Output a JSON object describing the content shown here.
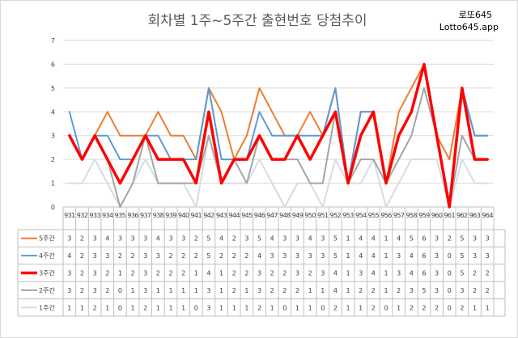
{
  "chart_data": {
    "type": "line",
    "title": "회차별 1주~5주간 출현번호 당첨추이",
    "brand": [
      "로또645",
      "Lotto645.app"
    ],
    "ylim": [
      0,
      7
    ],
    "yticks": [
      0,
      1,
      2,
      3,
      4,
      5,
      6,
      7
    ],
    "grid": true,
    "legend": "table-left",
    "categories": [
      "931",
      "932",
      "933",
      "934",
      "935",
      "936",
      "937",
      "938",
      "939",
      "940",
      "941",
      "942",
      "943",
      "944",
      "945",
      "946",
      "947",
      "948",
      "949",
      "950",
      "951",
      "952",
      "953",
      "954",
      "955",
      "956",
      "957",
      "958",
      "959",
      "960",
      "961",
      "962",
      "963",
      "964"
    ],
    "series": [
      {
        "name": "5주간",
        "color": "#ED7D31",
        "width": 2,
        "values": [
          3,
          2,
          3,
          4,
          3,
          3,
          3,
          4,
          3,
          3,
          2,
          5,
          4,
          2,
          3,
          5,
          4,
          3,
          3,
          4,
          3,
          5,
          1,
          4,
          4,
          1,
          4,
          5,
          6,
          3,
          2,
          5,
          3,
          3
        ]
      },
      {
        "name": "4주간",
        "color": "#5B9BD5",
        "width": 2,
        "values": [
          4,
          2,
          3,
          3,
          2,
          2,
          3,
          3,
          2,
          2,
          2,
          5,
          2,
          2,
          2,
          4,
          3,
          3,
          3,
          3,
          3,
          5,
          1,
          4,
          4,
          1,
          3,
          4,
          6,
          3,
          0,
          5,
          3,
          3
        ]
      },
      {
        "name": "3주간",
        "color": "#FF0000",
        "width": 3.5,
        "values": [
          3,
          2,
          3,
          2,
          1,
          2,
          3,
          2,
          2,
          2,
          1,
          4,
          1,
          2,
          2,
          3,
          2,
          2,
          3,
          2,
          3,
          4,
          1,
          3,
          4,
          1,
          3,
          4,
          6,
          3,
          0,
          5,
          2,
          2
        ]
      },
      {
        "name": "2주간",
        "color": "#A5A5A5",
        "width": 2,
        "values": [
          3,
          2,
          3,
          2,
          0,
          1,
          3,
          1,
          1,
          1,
          1,
          3,
          1,
          2,
          1,
          3,
          2,
          2,
          2,
          1,
          1,
          4,
          1,
          2,
          2,
          1,
          2,
          3,
          5,
          3,
          0,
          3,
          2,
          2
        ]
      },
      {
        "name": "1주간",
        "color": "#D6DCE5",
        "width": 2,
        "values": [
          1,
          1,
          2,
          1,
          0,
          1,
          2,
          1,
          1,
          1,
          0,
          3,
          1,
          1,
          1,
          2,
          1,
          0,
          1,
          1,
          0,
          2,
          1,
          1,
          2,
          0,
          1,
          2,
          2,
          2,
          0,
          2,
          1,
          1
        ]
      }
    ]
  }
}
